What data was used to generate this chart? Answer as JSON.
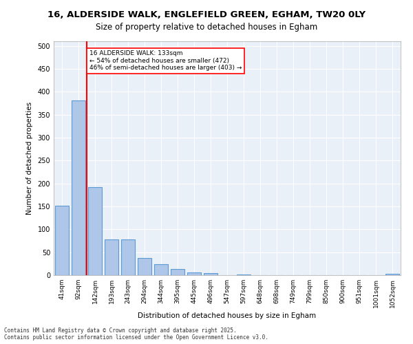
{
  "title_line1": "16, ALDERSIDE WALK, ENGLEFIELD GREEN, EGHAM, TW20 0LY",
  "title_line2": "Size of property relative to detached houses in Egham",
  "xlabel": "Distribution of detached houses by size in Egham",
  "ylabel": "Number of detached properties",
  "categories": [
    "41sqm",
    "92sqm",
    "142sqm",
    "193sqm",
    "243sqm",
    "294sqm",
    "344sqm",
    "395sqm",
    "445sqm",
    "496sqm",
    "547sqm",
    "597sqm",
    "648sqm",
    "698sqm",
    "749sqm",
    "799sqm",
    "850sqm",
    "900sqm",
    "951sqm",
    "1001sqm",
    "1052sqm"
  ],
  "values": [
    152,
    381,
    192,
    78,
    78,
    38,
    24,
    14,
    6,
    4,
    0,
    2,
    0,
    0,
    0,
    0,
    0,
    0,
    0,
    0,
    3
  ],
  "bar_color": "#aec6e8",
  "bar_edge_color": "#5b9bd5",
  "vline_x": 1.5,
  "vline_color": "red",
  "annotation_text": "16 ALDERSIDE WALK: 133sqm\n← 54% of detached houses are smaller (472)\n46% of semi-detached houses are larger (403) →",
  "annotation_box_color": "white",
  "annotation_box_edge": "red",
  "ylim": [
    0,
    510
  ],
  "yticks": [
    0,
    50,
    100,
    150,
    200,
    250,
    300,
    350,
    400,
    450,
    500
  ],
  "background_color": "#eaf0f8",
  "grid_color": "white",
  "footer_line1": "Contains HM Land Registry data © Crown copyright and database right 2025.",
  "footer_line2": "Contains public sector information licensed under the Open Government Licence v3.0."
}
